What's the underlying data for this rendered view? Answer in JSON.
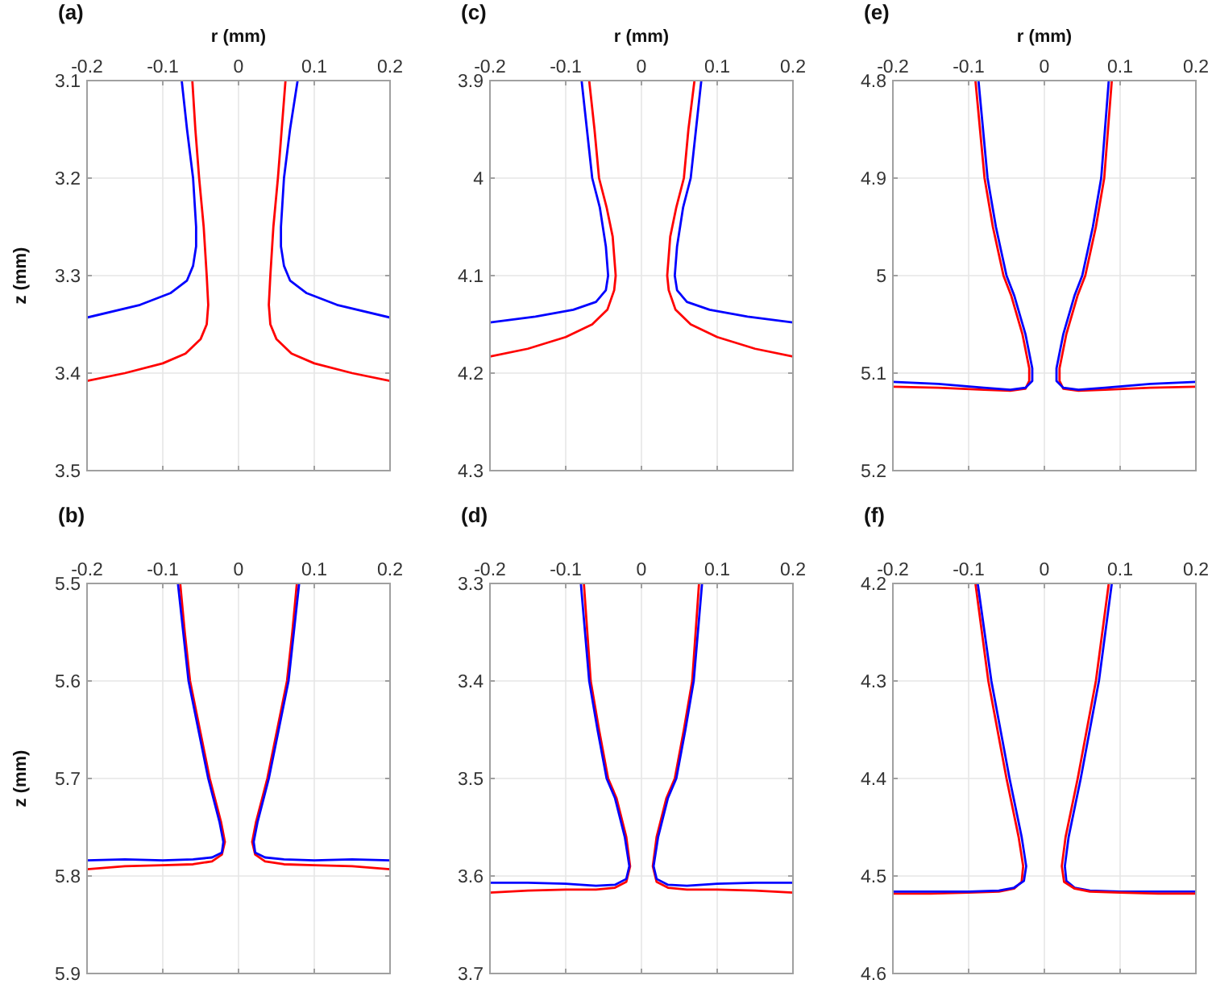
{
  "chart_data": [
    {
      "type": "line",
      "title": "(a)",
      "xlabel": "r (mm)",
      "ylabel": "z (mm)",
      "xlim": [
        -0.2,
        0.2
      ],
      "xticks": [
        -0.2,
        -0.1,
        0,
        0.1,
        0.2
      ],
      "ylim": [
        3.5,
        3.1
      ],
      "yticks": [
        3.1,
        3.2,
        3.3,
        3.4,
        3.5
      ],
      "grid": true,
      "series": [
        {
          "color": "#ff0000",
          "x": [
            -0.2,
            -0.15,
            -0.1,
            -0.07,
            -0.05,
            -0.042,
            -0.04,
            -0.042,
            -0.046,
            -0.052,
            -0.057,
            -0.061
          ],
          "values": [
            3.408,
            3.4,
            3.39,
            3.38,
            3.365,
            3.35,
            3.33,
            3.3,
            3.25,
            3.2,
            3.15,
            3.1
          ]
        },
        {
          "color": "#ff0000",
          "x": [
            0.2,
            0.15,
            0.1,
            0.07,
            0.05,
            0.042,
            0.04,
            0.042,
            0.046,
            0.052,
            0.057,
            0.062
          ],
          "values": [
            3.408,
            3.4,
            3.39,
            3.38,
            3.365,
            3.35,
            3.33,
            3.3,
            3.25,
            3.2,
            3.15,
            3.1
          ]
        },
        {
          "color": "#0000ff",
          "x": [
            -0.2,
            -0.13,
            -0.09,
            -0.068,
            -0.06,
            -0.056,
            -0.056,
            -0.06,
            -0.068,
            -0.075
          ],
          "values": [
            3.343,
            3.33,
            3.318,
            3.305,
            3.29,
            3.27,
            3.25,
            3.2,
            3.15,
            3.1
          ]
        },
        {
          "color": "#0000ff",
          "x": [
            0.2,
            0.13,
            0.09,
            0.068,
            0.06,
            0.056,
            0.056,
            0.06,
            0.068,
            0.078
          ],
          "values": [
            3.343,
            3.33,
            3.318,
            3.305,
            3.29,
            3.27,
            3.25,
            3.2,
            3.15,
            3.1
          ]
        }
      ]
    },
    {
      "type": "line",
      "title": "(c)",
      "xlabel": "r (mm)",
      "xlim": [
        -0.2,
        0.2
      ],
      "xticks": [
        -0.2,
        -0.1,
        0,
        0.1,
        0.2
      ],
      "ylim": [
        4.3,
        3.9
      ],
      "yticks": [
        3.9,
        4,
        4.1,
        4.2,
        4.3
      ],
      "grid": true,
      "series": [
        {
          "color": "#ff0000",
          "x": [
            -0.2,
            -0.15,
            -0.1,
            -0.065,
            -0.045,
            -0.036,
            -0.034,
            -0.038,
            -0.046,
            -0.056,
            -0.062,
            -0.069
          ],
          "values": [
            4.183,
            4.175,
            4.163,
            4.15,
            4.135,
            4.115,
            4.1,
            4.06,
            4.03,
            4,
            3.95,
            3.9
          ]
        },
        {
          "color": "#ff0000",
          "x": [
            0.2,
            0.15,
            0.1,
            0.065,
            0.045,
            0.036,
            0.034,
            0.038,
            0.046,
            0.056,
            0.062,
            0.07
          ],
          "values": [
            4.183,
            4.175,
            4.163,
            4.15,
            4.135,
            4.115,
            4.1,
            4.06,
            4.03,
            4,
            3.95,
            3.9
          ]
        },
        {
          "color": "#0000ff",
          "x": [
            -0.2,
            -0.14,
            -0.09,
            -0.06,
            -0.047,
            -0.044,
            -0.047,
            -0.055,
            -0.065,
            -0.072,
            -0.079
          ],
          "values": [
            4.148,
            4.142,
            4.135,
            4.127,
            4.115,
            4.1,
            4.07,
            4.03,
            4,
            3.95,
            3.9
          ]
        },
        {
          "color": "#0000ff",
          "x": [
            0.2,
            0.14,
            0.09,
            0.06,
            0.047,
            0.044,
            0.047,
            0.055,
            0.065,
            0.072,
            0.079
          ],
          "values": [
            4.148,
            4.142,
            4.135,
            4.127,
            4.115,
            4.1,
            4.07,
            4.03,
            4,
            3.95,
            3.9
          ]
        }
      ]
    },
    {
      "type": "line",
      "title": "(e)",
      "xlabel": "r (mm)",
      "xlim": [
        -0.2,
        0.2
      ],
      "xticks": [
        -0.2,
        -0.1,
        0,
        0.1,
        0.2
      ],
      "ylim": [
        5.2,
        4.8
      ],
      "yticks": [
        4.8,
        4.9,
        5,
        5.1,
        5.2
      ],
      "grid": true,
      "series": [
        {
          "color": "#ff0000",
          "x": [
            -0.2,
            -0.14,
            -0.08,
            -0.045,
            -0.025,
            -0.02,
            -0.02,
            -0.029,
            -0.044,
            -0.054,
            -0.068,
            -0.079,
            -0.085,
            -0.091
          ],
          "values": [
            5.114,
            5.115,
            5.117,
            5.118,
            5.116,
            5.108,
            5.095,
            5.06,
            5.02,
            5,
            4.95,
            4.9,
            4.85,
            4.8
          ]
        },
        {
          "color": "#ff0000",
          "x": [
            0.2,
            0.14,
            0.08,
            0.045,
            0.025,
            0.02,
            0.02,
            0.029,
            0.044,
            0.054,
            0.068,
            0.079,
            0.084,
            0.089
          ],
          "values": [
            5.114,
            5.115,
            5.117,
            5.118,
            5.116,
            5.108,
            5.095,
            5.06,
            5.02,
            5,
            4.95,
            4.9,
            4.85,
            4.8
          ]
        },
        {
          "color": "#0000ff",
          "x": [
            -0.2,
            -0.14,
            -0.08,
            -0.045,
            -0.025,
            -0.016,
            -0.016,
            -0.025,
            -0.04,
            -0.05,
            -0.064,
            -0.075,
            -0.081,
            -0.087
          ],
          "values": [
            5.109,
            5.111,
            5.115,
            5.117,
            5.115,
            5.108,
            5.095,
            5.06,
            5.02,
            5,
            4.95,
            4.9,
            4.85,
            4.8
          ]
        },
        {
          "color": "#0000ff",
          "x": [
            0.2,
            0.14,
            0.08,
            0.045,
            0.025,
            0.016,
            0.016,
            0.025,
            0.04,
            0.05,
            0.064,
            0.075,
            0.08,
            0.085
          ],
          "values": [
            5.109,
            5.111,
            5.115,
            5.117,
            5.115,
            5.108,
            5.095,
            5.06,
            5.02,
            5,
            4.95,
            4.9,
            4.85,
            4.8
          ]
        }
      ]
    },
    {
      "type": "line",
      "title": "(b)",
      "ylabel": "z (mm)",
      "xlim": [
        -0.2,
        0.2
      ],
      "xticks": [
        -0.2,
        -0.1,
        0,
        0.1,
        0.2
      ],
      "ylim": [
        5.9,
        5.5
      ],
      "yticks": [
        5.5,
        5.6,
        5.7,
        5.8,
        5.9
      ],
      "grid": true,
      "series": [
        {
          "color": "#ff0000",
          "x": [
            -0.2,
            -0.15,
            -0.1,
            -0.06,
            -0.035,
            -0.022,
            -0.018,
            -0.023,
            -0.038,
            -0.051,
            -0.064,
            -0.071,
            -0.077
          ],
          "values": [
            5.793,
            5.79,
            5.789,
            5.788,
            5.785,
            5.778,
            5.765,
            5.745,
            5.7,
            5.65,
            5.6,
            5.55,
            5.5
          ]
        },
        {
          "color": "#ff0000",
          "x": [
            0.2,
            0.15,
            0.1,
            0.06,
            0.035,
            0.022,
            0.018,
            0.023,
            0.038,
            0.051,
            0.064,
            0.071,
            0.077
          ],
          "values": [
            5.793,
            5.79,
            5.789,
            5.788,
            5.785,
            5.778,
            5.765,
            5.745,
            5.7,
            5.65,
            5.6,
            5.55,
            5.5
          ]
        },
        {
          "color": "#0000ff",
          "x": [
            -0.2,
            -0.15,
            -0.1,
            -0.06,
            -0.035,
            -0.022,
            -0.02,
            -0.025,
            -0.04,
            -0.053,
            -0.066,
            -0.073,
            -0.08
          ],
          "values": [
            5.784,
            5.783,
            5.784,
            5.783,
            5.781,
            5.776,
            5.765,
            5.745,
            5.7,
            5.65,
            5.6,
            5.55,
            5.5
          ]
        },
        {
          "color": "#0000ff",
          "x": [
            0.2,
            0.15,
            0.1,
            0.06,
            0.035,
            0.022,
            0.02,
            0.025,
            0.04,
            0.053,
            0.066,
            0.073,
            0.08
          ],
          "values": [
            5.784,
            5.783,
            5.784,
            5.783,
            5.781,
            5.776,
            5.765,
            5.745,
            5.7,
            5.65,
            5.6,
            5.55,
            5.5
          ]
        }
      ]
    },
    {
      "type": "line",
      "title": "(d)",
      "xlim": [
        -0.2,
        0.2
      ],
      "xticks": [
        -0.2,
        -0.1,
        0,
        0.1,
        0.2
      ],
      "ylim": [
        3.7,
        3.3
      ],
      "yticks": [
        3.3,
        3.4,
        3.5,
        3.6,
        3.7
      ],
      "grid": true,
      "series": [
        {
          "color": "#ff0000",
          "x": [
            -0.2,
            -0.15,
            -0.1,
            -0.06,
            -0.035,
            -0.02,
            -0.015,
            -0.02,
            -0.033,
            -0.044,
            -0.056,
            -0.067,
            -0.076
          ],
          "values": [
            3.617,
            3.615,
            3.614,
            3.614,
            3.612,
            3.606,
            3.59,
            3.56,
            3.52,
            3.5,
            3.45,
            3.4,
            3.3
          ]
        },
        {
          "color": "#ff0000",
          "x": [
            0.2,
            0.15,
            0.1,
            0.06,
            0.035,
            0.02,
            0.015,
            0.02,
            0.033,
            0.044,
            0.056,
            0.067,
            0.076
          ],
          "values": [
            3.617,
            3.615,
            3.614,
            3.614,
            3.612,
            3.606,
            3.59,
            3.56,
            3.52,
            3.5,
            3.45,
            3.4,
            3.3
          ]
        },
        {
          "color": "#0000ff",
          "x": [
            -0.2,
            -0.15,
            -0.1,
            -0.06,
            -0.035,
            -0.02,
            -0.016,
            -0.022,
            -0.035,
            -0.046,
            -0.058,
            -0.069,
            -0.08
          ],
          "values": [
            3.607,
            3.607,
            3.608,
            3.61,
            3.609,
            3.603,
            3.59,
            3.56,
            3.52,
            3.5,
            3.45,
            3.4,
            3.3
          ]
        },
        {
          "color": "#0000ff",
          "x": [
            0.2,
            0.15,
            0.1,
            0.06,
            0.035,
            0.02,
            0.016,
            0.022,
            0.035,
            0.046,
            0.058,
            0.069,
            0.08
          ],
          "values": [
            3.607,
            3.607,
            3.608,
            3.61,
            3.609,
            3.603,
            3.59,
            3.56,
            3.52,
            3.5,
            3.45,
            3.4,
            3.3
          ]
        }
      ]
    },
    {
      "type": "line",
      "title": "(f)",
      "xlim": [
        -0.2,
        0.2
      ],
      "xticks": [
        -0.2,
        -0.1,
        0,
        0.1,
        0.2
      ],
      "ylim": [
        4.6,
        4.2
      ],
      "yticks": [
        4.2,
        4.3,
        4.4,
        4.5,
        4.6
      ],
      "grid": true,
      "series": [
        {
          "color": "#ff0000",
          "x": [
            -0.2,
            -0.15,
            -0.1,
            -0.06,
            -0.04,
            -0.03,
            -0.028,
            -0.034,
            -0.05,
            -0.062,
            -0.074,
            -0.091
          ],
          "values": [
            4.518,
            4.518,
            4.517,
            4.516,
            4.513,
            4.506,
            4.49,
            4.46,
            4.4,
            4.35,
            4.3,
            4.2
          ]
        },
        {
          "color": "#0000ff",
          "x": [
            -0.2,
            -0.15,
            -0.1,
            -0.06,
            -0.04,
            -0.027,
            -0.024,
            -0.03,
            -0.046,
            -0.058,
            -0.07,
            -0.088
          ],
          "values": [
            4.516,
            4.516,
            4.516,
            4.515,
            4.512,
            4.505,
            4.49,
            4.46,
            4.4,
            4.35,
            4.3,
            4.2
          ]
        },
        {
          "color": "#0000ff",
          "x": [
            0.2,
            0.15,
            0.1,
            0.06,
            0.04,
            0.029,
            0.027,
            0.032,
            0.048,
            0.06,
            0.072,
            0.089
          ],
          "values": [
            4.516,
            4.516,
            4.516,
            4.515,
            4.512,
            4.505,
            4.49,
            4.46,
            4.4,
            4.35,
            4.3,
            4.2
          ]
        },
        {
          "color": "#ff0000",
          "x": [
            0.2,
            0.15,
            0.1,
            0.06,
            0.04,
            0.026,
            0.023,
            0.028,
            0.044,
            0.056,
            0.068,
            0.085
          ],
          "values": [
            4.518,
            4.518,
            4.517,
            4.516,
            4.513,
            4.506,
            4.49,
            4.46,
            4.4,
            4.35,
            4.3,
            4.2
          ]
        }
      ]
    }
  ]
}
